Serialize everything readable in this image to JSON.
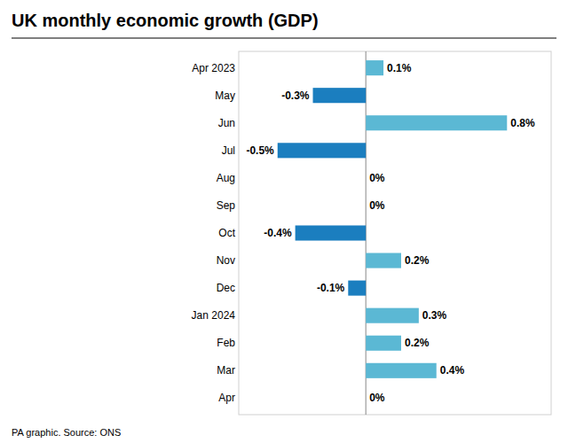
{
  "chart_data": {
    "type": "bar",
    "orientation": "horizontal",
    "title": "UK monthly economic growth (GDP)",
    "annotations": [
      "PA graphic. Source: ONS"
    ],
    "categories": [
      "Apr 2023",
      "May",
      "Jun",
      "Jul",
      "Aug",
      "Sep",
      "Oct",
      "Nov",
      "Dec",
      "Jan 2024",
      "Feb",
      "Mar",
      "Apr"
    ],
    "values": [
      0.1,
      -0.3,
      0.8,
      -0.5,
      0.0,
      0.0,
      -0.4,
      0.2,
      -0.1,
      0.3,
      0.2,
      0.4,
      0.0
    ],
    "value_labels": [
      "0.1%",
      "-0.3%",
      "0.8%",
      "-0.5%",
      "0%",
      "0%",
      "-0.4%",
      "0.2%",
      "-0.1%",
      "0.3%",
      "0.2%",
      "0.4%",
      "0%"
    ],
    "colors": [
      "#5BB8D4",
      "#1B7EBF",
      "#5BB8D4",
      "#1B7EBF",
      "#5BB8D4",
      "#5BB8D4",
      "#1B7EBF",
      "#5BB8D4",
      "#1B7EBF",
      "#5BB8D4",
      "#5BB8D4",
      "#5BB8D4",
      "#5BB8D4"
    ],
    "xlim": [
      -0.72,
      1.05
    ],
    "data_labels": true,
    "tick_labels": "y",
    "grid": false
  }
}
